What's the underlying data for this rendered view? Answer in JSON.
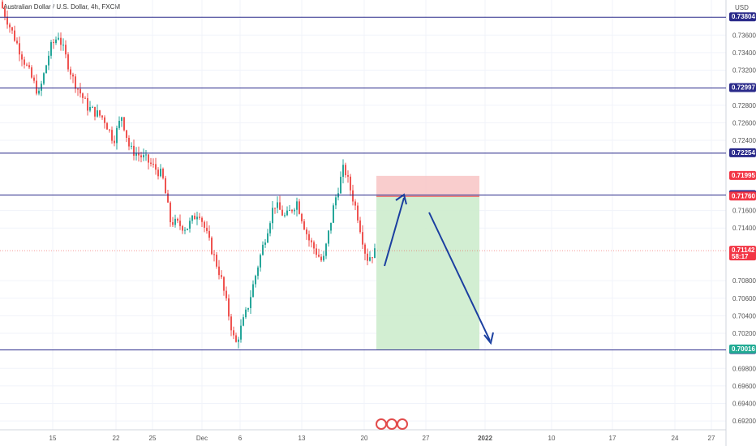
{
  "chart_data": {
    "type": "candlestick",
    "title": "Australian Dollar / U.S. Dollar, 4h, FXCM",
    "currency": "USD",
    "ylim": [
      0.691,
      0.74
    ],
    "y_ticks": [
      "0.73600",
      "0.73400",
      "0.73200",
      "0.72800",
      "0.72600",
      "0.72400",
      "0.71600",
      "0.71400",
      "0.70800",
      "0.70600",
      "0.70400",
      "0.70200",
      "0.69800",
      "0.69600",
      "0.69400",
      "0.69200"
    ],
    "x_ticks": [
      "15",
      "22",
      "25",
      "Dec",
      "6",
      "13",
      "20",
      "27",
      "2022",
      "10",
      "17",
      "24",
      "27"
    ],
    "horizontal_levels": [
      {
        "label": "0.73804",
        "value": 0.73804,
        "color": "#2a2a8a"
      },
      {
        "label": "0.72997",
        "value": 0.72997,
        "color": "#2a2a8a"
      },
      {
        "label": "0.72254",
        "value": 0.72254,
        "color": "#2a2a8a"
      },
      {
        "label": "0.71777",
        "value": 0.71777,
        "color": "#2a2a8a"
      },
      {
        "label": "0.70011",
        "value": 0.70011,
        "color": "#2a2a8a"
      }
    ],
    "badges": [
      {
        "label": "0.71995",
        "value": 0.71995,
        "color": "#f23645"
      },
      {
        "label": "0.71760",
        "value": 0.7176,
        "color": "#f23645"
      },
      {
        "label": "0.71142",
        "value": 0.71142,
        "color": "#f23645",
        "countdown": "58:17"
      },
      {
        "label": "0.70016",
        "value": 0.70016,
        "color": "#22ab94"
      }
    ],
    "position": {
      "entry": 0.7176,
      "stop": 0.71995,
      "target": 0.70016,
      "risk_color": "#f8c8c8",
      "reward_color": "#cdeccd"
    },
    "arrows_color": "#1b3fa0",
    "candle_colors": {
      "up": "#26a69a",
      "down": "#ef5350"
    },
    "candles": []
  }
}
